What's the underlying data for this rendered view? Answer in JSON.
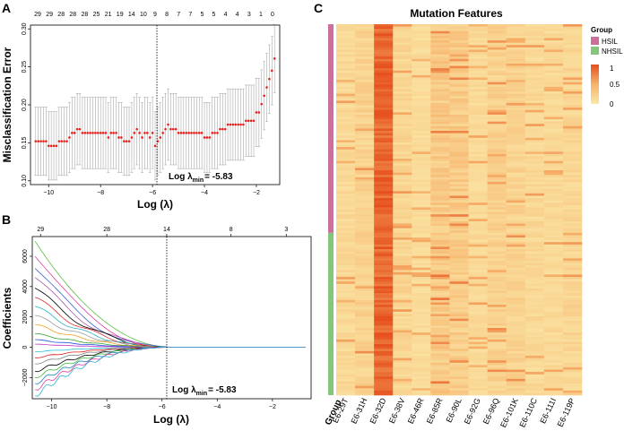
{
  "panels": {
    "a_letter": "A",
    "b_letter": "B",
    "c_letter": "C"
  },
  "chart_data": [
    {
      "type": "scatter",
      "title": "",
      "xlabel": "Log (λ)",
      "ylabel": "Misclassification Error",
      "xlim": [
        -10.7,
        -1.1
      ],
      "ylim": [
        0.095,
        0.305
      ],
      "xticks": [
        -10,
        -8,
        -6,
        -4,
        -2
      ],
      "yticks": [
        0.1,
        0.15,
        0.2,
        0.25,
        0.3
      ],
      "ytick_labels": [
        "0.10",
        "0.15",
        "0.20",
        "0.25",
        "0.30"
      ],
      "top_labels": [
        "29",
        "29",
        "28",
        "28",
        "28",
        "25",
        "21",
        "19",
        "14",
        "10",
        "9",
        "8",
        "7",
        "7",
        "5",
        "5",
        "4",
        "4",
        "3",
        "1",
        "0"
      ],
      "lambda_min": -5.83,
      "annotation": {
        "prefix": "Log λ",
        "sub": "min",
        "suffix": "= -5.83"
      },
      "x": [
        -10.5,
        -10.4,
        -10.3,
        -10.2,
        -10.1,
        -10,
        -9.9,
        -9.8,
        -9.7,
        -9.6,
        -9.5,
        -9.4,
        -9.3,
        -9.2,
        -9.1,
        -9,
        -8.9,
        -8.8,
        -8.7,
        -8.6,
        -8.5,
        -8.4,
        -8.3,
        -8.2,
        -8.1,
        -8,
        -7.9,
        -7.8,
        -7.7,
        -7.6,
        -7.5,
        -7.4,
        -7.3,
        -7.2,
        -7.1,
        -7,
        -6.9,
        -6.8,
        -6.7,
        -6.6,
        -6.5,
        -6.4,
        -6.3,
        -6.2,
        -6.1,
        -6,
        -5.9,
        -5.8,
        -5.7,
        -5.6,
        -5.5,
        -5.4,
        -5.3,
        -5.2,
        -5.1,
        -5,
        -4.9,
        -4.8,
        -4.7,
        -4.6,
        -4.5,
        -4.4,
        -4.3,
        -4.2,
        -4.1,
        -4,
        -3.9,
        -3.8,
        -3.7,
        -3.6,
        -3.5,
        -3.4,
        -3.3,
        -3.2,
        -3.1,
        -3,
        -2.9,
        -2.8,
        -2.7,
        -2.6,
        -2.5,
        -2.4,
        -2.3,
        -2.2,
        -2.1,
        -2,
        -1.9,
        -1.8,
        -1.7,
        -1.6,
        -1.5,
        -1.4,
        -1.3
      ],
      "values": [
        0.152,
        0.152,
        0.152,
        0.152,
        0.152,
        0.146,
        0.146,
        0.146,
        0.146,
        0.152,
        0.152,
        0.152,
        0.152,
        0.157,
        0.163,
        0.163,
        0.168,
        0.168,
        0.163,
        0.163,
        0.163,
        0.163,
        0.163,
        0.163,
        0.163,
        0.163,
        0.163,
        0.163,
        0.157,
        0.163,
        0.163,
        0.163,
        0.157,
        0.157,
        0.152,
        0.152,
        0.152,
        0.157,
        0.163,
        0.168,
        0.163,
        0.157,
        0.163,
        0.163,
        0.157,
        0.163,
        0.146,
        0.152,
        0.157,
        0.163,
        0.168,
        0.174,
        0.168,
        0.168,
        0.168,
        0.163,
        0.163,
        0.163,
        0.163,
        0.163,
        0.163,
        0.163,
        0.163,
        0.163,
        0.163,
        0.157,
        0.157,
        0.157,
        0.163,
        0.163,
        0.163,
        0.168,
        0.168,
        0.168,
        0.174,
        0.174,
        0.174,
        0.174,
        0.174,
        0.174,
        0.174,
        0.179,
        0.179,
        0.179,
        0.179,
        0.19,
        0.19,
        0.201,
        0.212,
        0.223,
        0.234,
        0.245,
        0.261
      ],
      "error_halfwidth": [
        0.045,
        0.045,
        0.045,
        0.045,
        0.045,
        0.045,
        0.045,
        0.045,
        0.045,
        0.045,
        0.045,
        0.045,
        0.045,
        0.046,
        0.047,
        0.047,
        0.047,
        0.047,
        0.047,
        0.047,
        0.047,
        0.047,
        0.047,
        0.047,
        0.047,
        0.047,
        0.047,
        0.047,
        0.046,
        0.047,
        0.047,
        0.047,
        0.046,
        0.046,
        0.045,
        0.045,
        0.045,
        0.046,
        0.047,
        0.047,
        0.047,
        0.046,
        0.047,
        0.047,
        0.046,
        0.047,
        0.045,
        0.045,
        0.046,
        0.047,
        0.047,
        0.047,
        0.047,
        0.047,
        0.047,
        0.047,
        0.047,
        0.047,
        0.047,
        0.047,
        0.047,
        0.047,
        0.047,
        0.047,
        0.047,
        0.046,
        0.046,
        0.046,
        0.047,
        0.047,
        0.047,
        0.047,
        0.047,
        0.047,
        0.047,
        0.047,
        0.047,
        0.047,
        0.047,
        0.047,
        0.047,
        0.047,
        0.047,
        0.047,
        0.047,
        0.045,
        0.045,
        0.045,
        0.045,
        0.045,
        0.045,
        0.045,
        0.045
      ]
    },
    {
      "type": "line",
      "title": "",
      "xlabel": "Log (λ)",
      "ylabel": "Coefficients",
      "xlim": [
        -10.7,
        -0.6
      ],
      "ylim": [
        -3400,
        7300
      ],
      "xticks": [
        -10,
        -8,
        -6,
        -4,
        -2
      ],
      "yticks": [
        -2000,
        0,
        2000,
        4000,
        6000
      ],
      "top_ticks": [
        -10.4,
        -8,
        -5.83,
        -3.5,
        -1.5
      ],
      "top_labels": [
        "29",
        "28",
        "14",
        "8",
        "3"
      ],
      "lambda_min": -5.83,
      "annotation": {
        "prefix": "Log λ",
        "sub": "min",
        "suffix": "= -5.83"
      },
      "series_start_values": [
        7000,
        6000,
        5200,
        4600,
        3900,
        3300,
        2700,
        2100,
        1500,
        900,
        500,
        200,
        -300,
        -700,
        -1100,
        -1600,
        -2000,
        -2400,
        -2800,
        -3200
      ],
      "series_colors": [
        "#5fbf3f",
        "#e040a0",
        "#4060d0",
        "#b05aa8",
        "#000000",
        "#e03030",
        "#28b0c8",
        "#9a9a9a",
        "#f0a020",
        "#30a030",
        "#2050e0",
        "#c030c0",
        "#20c0d0",
        "#e02020",
        "#808080",
        "#000000",
        "#40c040",
        "#2080c0",
        "#e040a0",
        "#30b0d8"
      ]
    },
    {
      "type": "heatmap",
      "title": "Mutation Features",
      "columns": [
        "E6-29T",
        "E6-31H",
        "E6-32D",
        "E6-38V",
        "E6-46R",
        "E6-85R",
        "E6-90L",
        "E6-92G",
        "E6-96Q",
        "E6-101K",
        "E6-110C",
        "E6-111I",
        "E6-119P"
      ],
      "row_count": 160,
      "group_label": "Group",
      "groups": [
        {
          "name": "HSIL",
          "count": 90,
          "color": "#cc6f9c"
        },
        {
          "name": "NHSIL",
          "count": 70,
          "color": "#84c77a"
        }
      ],
      "legend_title": "Group",
      "scale_ticks": [
        "1",
        "0.5",
        "0"
      ],
      "scale_colors": [
        "#fbe8a8",
        "#f6b26b",
        "#e64f1d"
      ],
      "column_mean_intensity": [
        0.15,
        0.22,
        0.85,
        0.18,
        0.12,
        0.3,
        0.28,
        0.14,
        0.22,
        0.2,
        0.16,
        0.15,
        0.18
      ]
    }
  ]
}
